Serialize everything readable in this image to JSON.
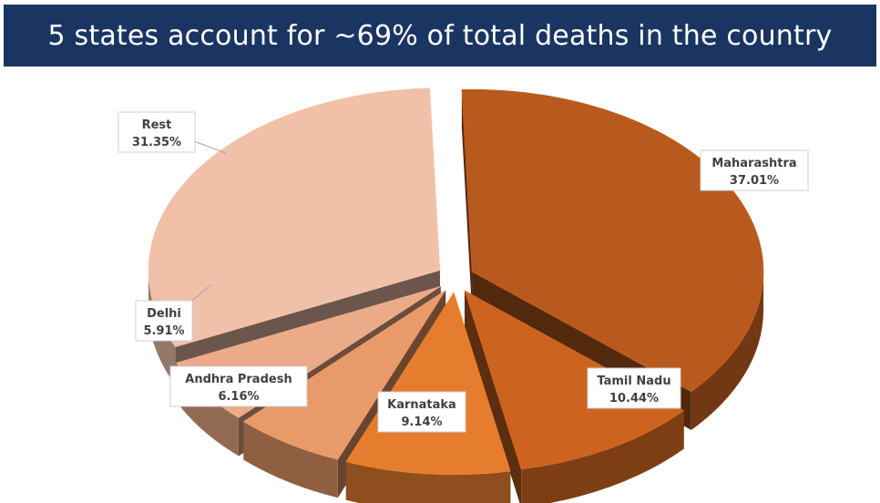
{
  "header": {
    "title": "5 states account for ~69% of total deaths in the country"
  },
  "colors": {
    "banner": "#1b3562",
    "banner_text": "#ffffff"
  },
  "chart_data": {
    "type": "pie",
    "title": "5 states account for ~69% of total deaths in the country",
    "style": "3d-exploded",
    "slices": [
      {
        "label": "Maharashtra",
        "value": 37.01,
        "value_label": "37.01%",
        "color": "#b85a1e"
      },
      {
        "label": "Tamil Nadu",
        "value": 10.44,
        "value_label": "10.44%",
        "color": "#cc6420"
      },
      {
        "label": "Karnataka",
        "value": 9.14,
        "value_label": "9.14%",
        "color": "#e67d2e"
      },
      {
        "label": "Andhra Pradesh",
        "value": 6.16,
        "value_label": "6.16%",
        "color": "#e99a6a"
      },
      {
        "label": "Delhi",
        "value": 5.91,
        "value_label": "5.91%",
        "color": "#ebab88"
      },
      {
        "label": "Rest",
        "value": 31.35,
        "value_label": "31.35%",
        "color": "#f1c0a8"
      }
    ]
  }
}
